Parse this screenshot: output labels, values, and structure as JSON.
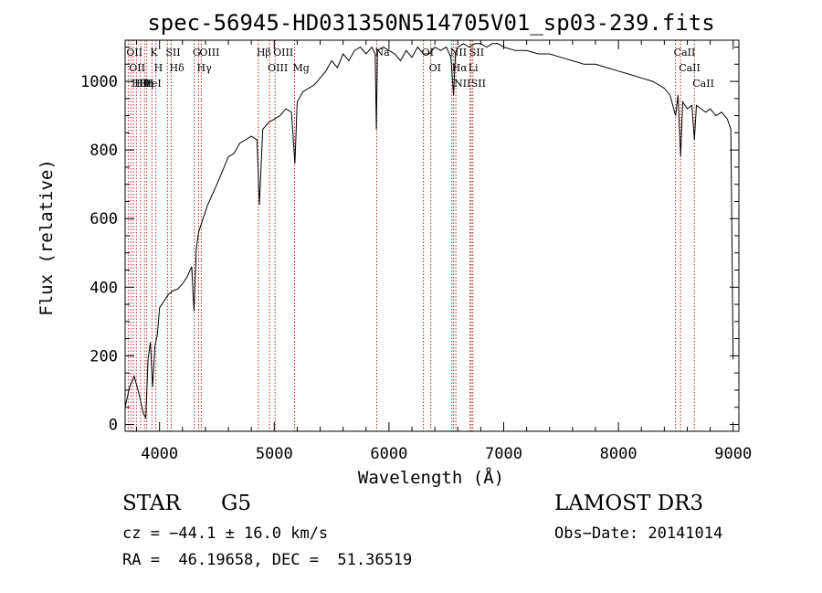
{
  "chart_data": {
    "type": "line",
    "title": "spec-56945-HD031350N514705V01_sp03-239.fits",
    "xlabel": "Wavelength (Å)",
    "ylabel": "Flux (relative)",
    "xlim": [
      3700,
      9050
    ],
    "ylim": [
      -20,
      1120
    ],
    "xticks": [
      4000,
      5000,
      6000,
      7000,
      8000,
      9000
    ],
    "yticks": [
      0,
      200,
      400,
      600,
      800,
      1000
    ],
    "xtick_labels": [
      "4000",
      "5000",
      "6000",
      "7000",
      "8000",
      "9000"
    ],
    "ytick_labels": [
      "0",
      "200",
      "400",
      "600",
      "800",
      "1000"
    ],
    "grid": false,
    "line_color": "#000000",
    "marker_color": "#b22222",
    "series": [
      {
        "x": [
          3700,
          3740,
          3780,
          3820,
          3860,
          3880,
          3900,
          3920,
          3940,
          3960,
          3980,
          4000,
          4040,
          4080,
          4120,
          4160,
          4200,
          4240,
          4280,
          4300,
          4320,
          4340,
          4380,
          4420,
          4460,
          4500,
          4550,
          4600,
          4650,
          4700,
          4750,
          4800,
          4850,
          4870,
          4900,
          4950,
          5000,
          5050,
          5100,
          5150,
          5180,
          5200,
          5250,
          5300,
          5350,
          5400,
          5450,
          5500,
          5550,
          5600,
          5650,
          5700,
          5750,
          5800,
          5850,
          5880,
          5890,
          5900,
          5950,
          6000,
          6050,
          6100,
          6150,
          6200,
          6250,
          6300,
          6350,
          6400,
          6450,
          6500,
          6540,
          6563,
          6580,
          6600,
          6650,
          6700,
          6750,
          6800,
          6850,
          6900,
          6950,
          7000,
          7100,
          7200,
          7300,
          7400,
          7500,
          7600,
          7700,
          7800,
          7900,
          8000,
          8100,
          8200,
          8300,
          8400,
          8450,
          8498,
          8520,
          8542,
          8560,
          8600,
          8640,
          8662,
          8680,
          8720,
          8760,
          8800,
          8850,
          8900,
          8950,
          8980,
          9000
        ],
        "y": [
          50,
          110,
          140,
          90,
          30,
          20,
          190,
          240,
          110,
          230,
          260,
          340,
          360,
          380,
          390,
          395,
          410,
          430,
          460,
          330,
          510,
          560,
          600,
          640,
          670,
          700,
          740,
          780,
          790,
          820,
          830,
          840,
          830,
          640,
          860,
          880,
          890,
          900,
          920,
          910,
          760,
          940,
          970,
          980,
          990,
          1010,
          1030,
          1060,
          1040,
          1080,
          1060,
          1090,
          1100,
          1080,
          1100,
          1080,
          860,
          1090,
          1100,
          1090,
          1080,
          1060,
          1090,
          1070,
          1100,
          1080,
          1080,
          1100,
          1090,
          1100,
          1070,
          960,
          1080,
          1100,
          1110,
          1100,
          1110,
          1110,
          1100,
          1110,
          1110,
          1100,
          1090,
          1090,
          1080,
          1080,
          1070,
          1060,
          1050,
          1050,
          1040,
          1030,
          1020,
          1010,
          1000,
          980,
          960,
          900,
          960,
          780,
          940,
          920,
          930,
          830,
          930,
          920,
          910,
          920,
          900,
          910,
          890,
          860,
          190
        ]
      }
    ],
    "lines": [
      {
        "x": 3727,
        "labels": [
          "OII"
        ]
      },
      {
        "x": 3750,
        "labels": [
          "OII"
        ]
      },
      {
        "x": 3771,
        "labels": [
          "Hθ"
        ]
      },
      {
        "x": 3798,
        "labels": [
          "Hθ"
        ]
      },
      {
        "x": 3835,
        "labels": [
          "Hη"
        ]
      },
      {
        "x": 3869,
        "labels": [
          "HeI"
        ]
      },
      {
        "x": 3889,
        "labels": [
          "H"
        ]
      },
      {
        "x": 3934,
        "labels": [
          "K"
        ]
      },
      {
        "x": 3968,
        "labels": [
          "H"
        ]
      },
      {
        "x": 4069,
        "labels": [
          "SII"
        ]
      },
      {
        "x": 4102,
        "labels": [
          "Hδ"
        ]
      },
      {
        "x": 4304,
        "labels": [
          "G"
        ]
      },
      {
        "x": 4341,
        "labels": [
          "Hγ"
        ]
      },
      {
        "x": 4364,
        "labels": [
          "OIII"
        ]
      },
      {
        "x": 4861,
        "labels": [
          "Hβ"
        ]
      },
      {
        "x": 4959,
        "labels": [
          "OIII"
        ]
      },
      {
        "x": 5007,
        "labels": [
          "OIII"
        ]
      },
      {
        "x": 5177,
        "labels": [
          "Mg"
        ]
      },
      {
        "x": 5893,
        "labels": [
          "Na"
        ]
      },
      {
        "x": 6300,
        "labels": [
          "OI"
        ]
      },
      {
        "x": 6364,
        "labels": [
          "OI"
        ]
      },
      {
        "x": 6548,
        "labels": [
          "NII"
        ]
      },
      {
        "x": 6563,
        "labels": [
          "Hα"
        ]
      },
      {
        "x": 6583,
        "labels": [
          "NII"
        ]
      },
      {
        "x": 6707,
        "labels": [
          "Li"
        ]
      },
      {
        "x": 6716,
        "labels": [
          "SII"
        ]
      },
      {
        "x": 6731,
        "labels": [
          "SII"
        ]
      },
      {
        "x": 8498,
        "labels": [
          "CaII"
        ]
      },
      {
        "x": 8542,
        "labels": [
          "CaII"
        ]
      },
      {
        "x": 8662,
        "labels": [
          "CaII"
        ]
      }
    ]
  },
  "info": {
    "class": "STAR",
    "subclass": "G5",
    "survey": "LAMOST DR3",
    "cz": "cz = −44.1 ± 16.0 km/s",
    "obs_date": "Obs−Date: 20141014",
    "coords": "RA =  46.19658, DEC =  51.36519"
  }
}
